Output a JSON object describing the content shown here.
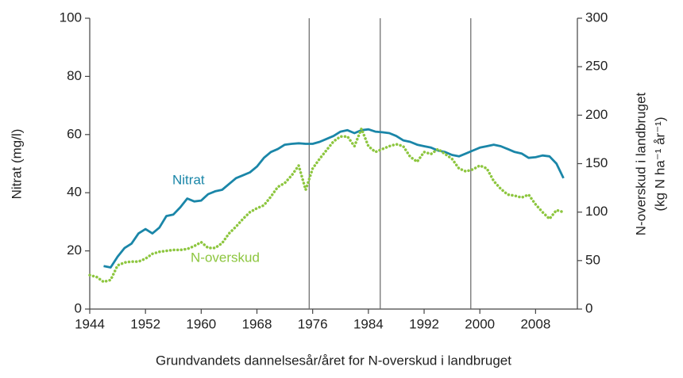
{
  "chart_data": {
    "type": "line",
    "xlabel": "Grundvandets dannelsesår/året for N-overskud i landbruget",
    "ylabel": "Nitrat (mg/l)",
    "y2label": [
      "N-overskud i landbruget",
      "(kg N ha⁻¹ år⁻¹)"
    ],
    "x": [
      1944,
      1945,
      1946,
      1947,
      1948,
      1949,
      1950,
      1951,
      1952,
      1953,
      1954,
      1955,
      1956,
      1957,
      1958,
      1959,
      1960,
      1961,
      1962,
      1963,
      1964,
      1965,
      1966,
      1967,
      1968,
      1969,
      1970,
      1971,
      1972,
      1973,
      1974,
      1975,
      1976,
      1977,
      1978,
      1979,
      1980,
      1981,
      1982,
      1983,
      1984,
      1985,
      1986,
      1987,
      1988,
      1989,
      1990,
      1991,
      1992,
      1993,
      1994,
      1995,
      1996,
      1997,
      1998,
      1999,
      2000,
      2001,
      2002,
      2003,
      2004,
      2005,
      2006,
      2007,
      2008,
      2009,
      2010,
      2011,
      2012
    ],
    "series": [
      {
        "name": "Nitrat",
        "color": "#1a86a8",
        "axis": "y",
        "dash": false,
        "values": [
          null,
          null,
          14.8,
          14.3,
          18,
          21,
          22.5,
          26,
          27.5,
          26,
          28,
          32,
          32.5,
          35,
          38,
          37,
          37.3,
          39.5,
          40.5,
          41,
          43,
          45,
          46,
          47,
          49,
          52,
          54,
          55,
          56.5,
          56.8,
          57,
          56.8,
          56.8,
          57.5,
          58.5,
          59.5,
          61,
          61.5,
          60.5,
          61.5,
          61.8,
          61,
          60.8,
          60.5,
          59.5,
          58,
          57.5,
          56.5,
          56,
          55.5,
          54.5,
          54,
          53,
          52.5,
          53.5,
          54.5,
          55.5,
          56,
          56.5,
          56,
          55,
          54,
          53.5,
          52,
          52.2,
          52.8,
          52.5,
          50,
          45
        ]
      },
      {
        "name": "N-overskud",
        "color": "#8dc63f",
        "axis": "y2",
        "dash": true,
        "values": [
          35,
          33,
          28,
          30,
          45,
          48,
          49,
          49,
          52,
          57,
          59,
          60,
          61,
          61,
          62,
          65,
          69,
          63,
          63,
          68,
          78,
          85,
          93,
          100,
          104,
          107,
          116,
          126,
          130,
          138,
          148,
          123,
          145,
          155,
          164,
          173,
          178,
          178,
          168,
          186,
          168,
          162,
          165,
          168,
          170,
          168,
          157,
          152,
          162,
          160,
          165,
          160,
          155,
          145,
          142,
          144,
          148,
          145,
          132,
          124,
          118,
          117,
          115,
          118,
          108,
          100,
          93,
          102,
          100
        ]
      }
    ],
    "vlines": [
      1975.5,
      1985.7,
      1998.7
    ],
    "xlim": [
      1944,
      2014
    ],
    "xticks": [
      1944,
      1952,
      1960,
      1968,
      1976,
      1984,
      1992,
      2000,
      2008
    ],
    "ylim": [
      0,
      100
    ],
    "yticks": [
      0,
      20,
      40,
      60,
      80,
      100
    ],
    "y2lim": [
      0,
      300
    ],
    "y2ticks": [
      0,
      50,
      100,
      150,
      200,
      250,
      300
    ]
  }
}
